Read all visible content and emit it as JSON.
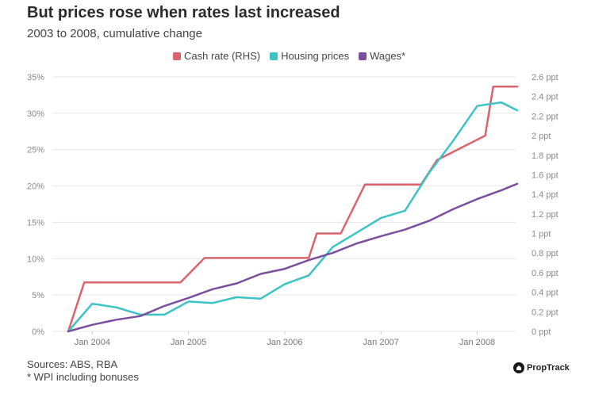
{
  "title": "But prices rose when rates last increased",
  "subtitle": "2003 to 2008, cumulative change",
  "footer": {
    "sources": "Sources: ABS, RBA",
    "note": "* WPI including bonuses"
  },
  "brand": {
    "name": "PropTrack",
    "icon": "house-logo-icon"
  },
  "colors": {
    "cash_rate": "#d9646e",
    "housing": "#3cc3c6",
    "wages": "#7b4f9e",
    "grid": "#e6e6e6",
    "tick_text": "#8a8a8a"
  },
  "chart_data": {
    "type": "line",
    "title": "But prices rose when rates last increased",
    "subtitle": "2003 to 2008, cumulative change",
    "xlabel": "",
    "ylabel": "",
    "x_range": [
      "2003-09",
      "2008-06"
    ],
    "x_ticks": [
      {
        "x": "2004-01",
        "label": "Jan 2004"
      },
      {
        "x": "2005-01",
        "label": "Jan 2005"
      },
      {
        "x": "2006-01",
        "label": "Jan 2006"
      },
      {
        "x": "2007-01",
        "label": "Jan 2007"
      },
      {
        "x": "2008-01",
        "label": "Jan 2008"
      }
    ],
    "y_left": {
      "range": [
        0,
        35
      ],
      "ticks": [
        0,
        5,
        10,
        15,
        20,
        25,
        30,
        35
      ],
      "tick_labels": [
        "0%",
        "5%",
        "10%",
        "15%",
        "20%",
        "25%",
        "30%",
        "35%"
      ]
    },
    "y_right": {
      "range": [
        0,
        2.6
      ],
      "ticks": [
        0,
        0.2,
        0.4,
        0.6,
        0.8,
        1.0,
        1.2,
        1.4,
        1.6,
        1.8,
        2.0,
        2.2,
        2.4,
        2.6
      ],
      "tick_labels": [
        "0 ppt",
        "0.2 ppt",
        "0.4 ppt",
        "0.6 ppt",
        "0.8 ppt",
        "1 ppt",
        "1.2 ppt",
        "1.4 ppt",
        "1.6 ppt",
        "1.8 ppt",
        "2 ppt",
        "2.2 ppt",
        "2.4 ppt",
        "2.6 ppt"
      ]
    },
    "grid": true,
    "legend_position": "top",
    "series": [
      {
        "name": "Cash rate (RHS)",
        "axis": "right",
        "color": "#d9646e",
        "x": [
          "2003-10",
          "2003-12",
          "2004-12",
          "2005-03",
          "2006-04",
          "2006-05",
          "2006-08",
          "2006-11",
          "2007-06",
          "2007-08",
          "2008-02",
          "2008-03",
          "2008-06"
        ],
        "values": [
          0,
          0.5,
          0.5,
          0.75,
          0.75,
          1.0,
          1.0,
          1.5,
          1.5,
          1.75,
          2.0,
          2.5,
          2.5
        ]
      },
      {
        "name": "Housing prices",
        "axis": "left",
        "color": "#3cc3c6",
        "x": [
          "2003-10",
          "2004-01",
          "2004-04",
          "2004-07",
          "2004-10",
          "2005-01",
          "2005-04",
          "2005-07",
          "2005-10",
          "2006-01",
          "2006-04",
          "2006-07",
          "2006-10",
          "2007-01",
          "2007-04",
          "2007-07",
          "2007-10",
          "2008-01",
          "2008-04",
          "2008-06"
        ],
        "values": [
          0,
          3.8,
          3.3,
          2.3,
          2.3,
          4.1,
          3.9,
          4.7,
          4.5,
          6.5,
          7.7,
          11.6,
          13.6,
          15.6,
          16.6,
          21.8,
          26.2,
          31.0,
          31.5,
          30.4
        ]
      },
      {
        "name": "Wages*",
        "axis": "left",
        "color": "#7b4f9e",
        "x": [
          "2003-10",
          "2004-01",
          "2004-04",
          "2004-07",
          "2004-10",
          "2005-01",
          "2005-04",
          "2005-07",
          "2005-10",
          "2006-01",
          "2006-04",
          "2006-07",
          "2006-10",
          "2007-01",
          "2007-04",
          "2007-07",
          "2007-10",
          "2008-01",
          "2008-04",
          "2008-06"
        ],
        "values": [
          0,
          0.9,
          1.6,
          2.1,
          3.5,
          4.6,
          5.8,
          6.6,
          7.9,
          8.6,
          9.8,
          10.8,
          12.1,
          13.1,
          14.0,
          15.2,
          16.8,
          18.2,
          19.4,
          20.3
        ]
      }
    ]
  }
}
